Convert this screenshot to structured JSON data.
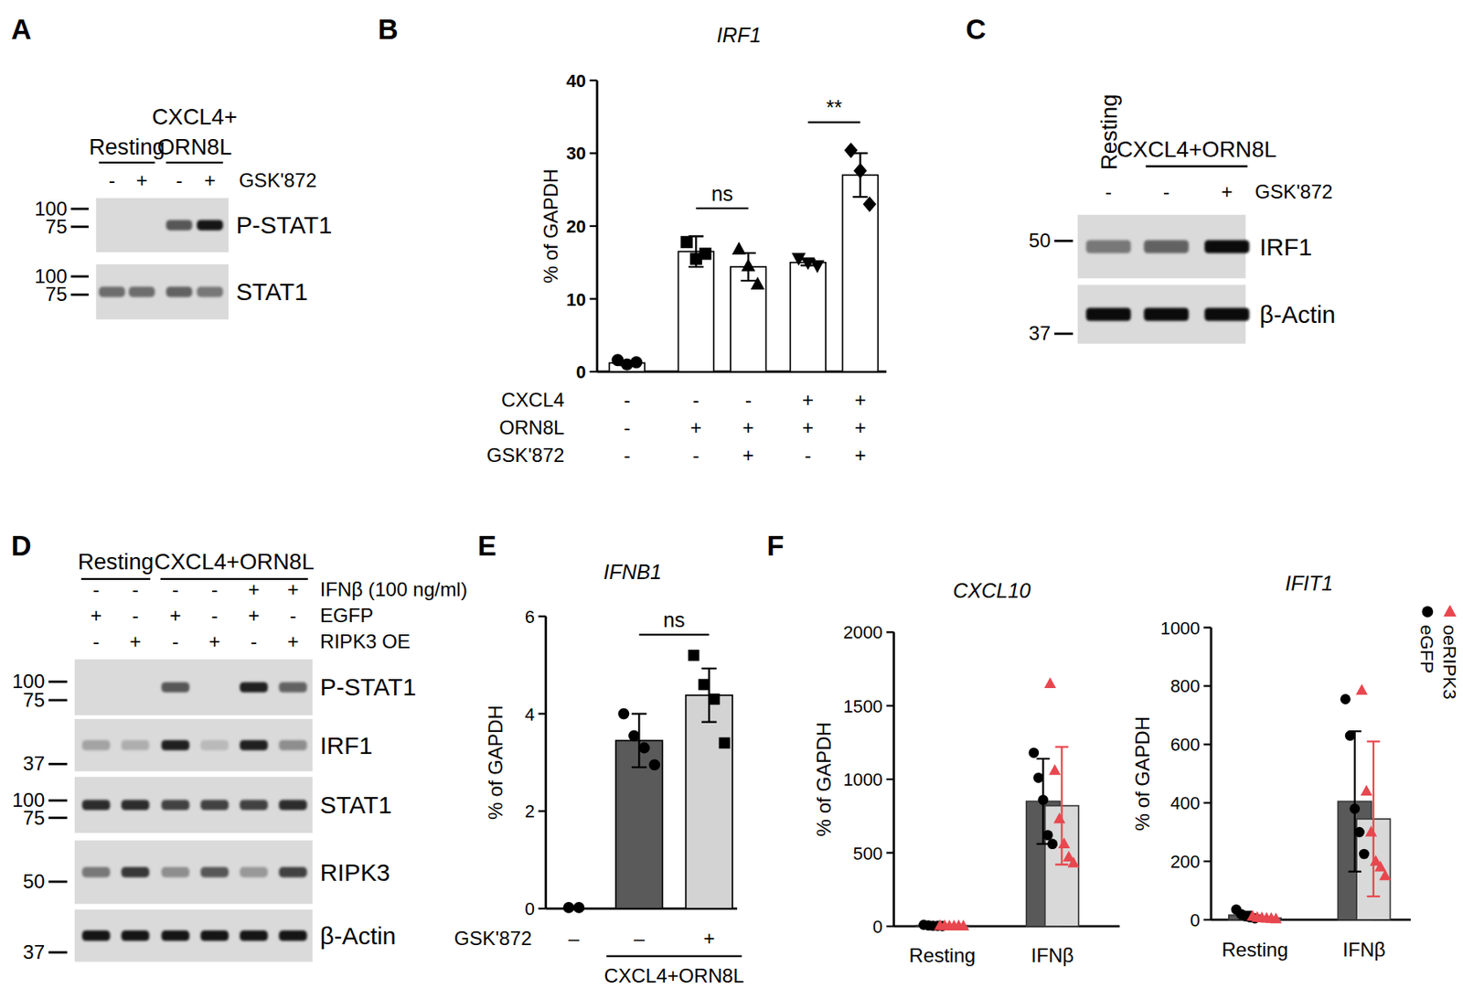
{
  "chart_data": [
    {
      "type": "bar",
      "panel": "B",
      "title": "IRF1",
      "y_label": "% of GAPDH",
      "categories": [
        null,
        null,
        null,
        null,
        null
      ],
      "values": [
        1.2,
        16.5,
        14.4,
        15.0,
        27.0
      ],
      "errors": [
        0.3,
        2.1,
        1.9,
        0.4,
        3.0
      ],
      "points": [
        [
          1.6,
          1.0,
          1.3
        ],
        [
          17.8,
          15.5,
          16.2
        ],
        [
          16.8,
          14.5,
          12.0
        ],
        [
          15.6,
          15.0,
          14.6
        ],
        [
          30.4,
          27.6,
          23.0
        ]
      ],
      "marker": [
        "circle",
        "square",
        "triangle",
        "triangle-down",
        "diamond"
      ],
      "color": "#ffffff",
      "ylim": [
        0,
        40
      ],
      "yticks": [
        0,
        10,
        20,
        30,
        40
      ],
      "conditions": [
        {
          "name": "CXCL4",
          "signs": [
            "-",
            "-",
            "-",
            "+",
            "+"
          ]
        },
        {
          "name": "ORN8L",
          "signs": [
            "-",
            "+",
            "+",
            "+",
            "+"
          ]
        },
        {
          "name": "GSK'872",
          "signs": [
            "-",
            "-",
            "+",
            "-",
            "+"
          ]
        }
      ],
      "significance": [
        {
          "pair": [
            1,
            2
          ],
          "text": "ns"
        },
        {
          "pair": [
            3,
            4
          ],
          "text": "**"
        }
      ]
    },
    {
      "type": "bar",
      "panel": "E",
      "title": "IFNB1",
      "y_label": "% of GAPDH",
      "categories": [
        null,
        null,
        null
      ],
      "values": [
        0,
        3.45,
        4.38
      ],
      "errors": [
        0,
        0.55,
        0.55
      ],
      "points": [
        [
          0.02,
          0.02
        ],
        [
          4.0,
          3.55,
          3.3,
          2.95
        ],
        [
          5.2,
          4.6,
          4.3,
          3.4
        ]
      ],
      "marker": [
        "circle",
        "circle",
        "square"
      ],
      "colors": [
        "#5a5a5a",
        "#5a5a5a",
        "#d3d3d3"
      ],
      "ylim": [
        0,
        6
      ],
      "yticks": [
        0,
        2,
        4,
        6
      ],
      "conditions": [
        {
          "name": "GSK'872",
          "signs": [
            "–",
            "–",
            "+"
          ]
        }
      ],
      "group_labels": [
        {
          "text": "CXCL4+ORN8L",
          "span": [
            1,
            2
          ]
        }
      ],
      "significance": [
        {
          "pair": [
            1,
            2
          ],
          "text": "ns"
        }
      ]
    },
    {
      "type": "bar",
      "panel": "F",
      "title": "CXCL10",
      "y_label": "% of GAPDH",
      "categories": [
        "Resting",
        "IFNβ"
      ],
      "colors": [
        "#595959",
        "#d9d9d9"
      ],
      "series": [
        {
          "name": "eGFP",
          "color": "#000000",
          "marker": "circle",
          "values": [
            5,
            850
          ],
          "errors": [
            5,
            290
          ],
          "points": [
            [
              10,
              6,
              4,
              3,
              2
            ],
            [
              1180,
              1010,
              860,
              620,
              560
            ]
          ]
        },
        {
          "name": "oeRIPK3",
          "color": "#e8474f",
          "marker": "triangle",
          "values": [
            3,
            820
          ],
          "errors": [
            2,
            400
          ],
          "points": [
            [
              4,
              3,
              2,
              2,
              3,
              2
            ],
            [
              1650,
              1060,
              730,
              560,
              470,
              430
            ]
          ]
        }
      ],
      "ylim": [
        0,
        2000
      ],
      "yticks": [
        0,
        500,
        1000,
        1500,
        2000
      ]
    },
    {
      "type": "bar",
      "title": "IFIT1",
      "y_label": "% of GAPDH",
      "categories": [
        "Resting",
        "IFNβ"
      ],
      "colors": [
        "#595959",
        "#d9d9d9"
      ],
      "series": [
        {
          "name": "eGFP",
          "color": "#000000",
          "marker": "circle",
          "values": [
            16,
            405
          ],
          "errors": [
            12,
            240
          ],
          "points": [
            [
              35,
              20,
              12,
              8,
              5
            ],
            [
              755,
              630,
              380,
              300,
              225
            ]
          ]
        },
        {
          "name": "oeRIPK3",
          "color": "#e8474f",
          "marker": "triangle",
          "values": [
            6,
            345
          ],
          "errors": [
            4,
            265
          ],
          "points": [
            [
              12,
              8,
              6,
              5,
              4,
              3
            ],
            [
              785,
              440,
              300,
              200,
              180,
              150
            ]
          ]
        }
      ],
      "ylim": [
        0,
        1000
      ],
      "yticks": [
        0,
        200,
        400,
        600,
        800,
        1000
      ],
      "legend": "right"
    }
  ],
  "blots": [
    {
      "panel": "A",
      "headers": [
        {
          "text": [
            "Resting"
          ],
          "span": [
            0,
            1
          ]
        },
        {
          "text": [
            "CXCL4+",
            "ORN8L"
          ],
          "span": [
            2,
            3
          ]
        }
      ],
      "conditions": [
        {
          "name": "GSK'872",
          "signs": [
            "-",
            "+",
            "-",
            "+"
          ]
        }
      ],
      "rows": [
        {
          "name": "P-STAT1",
          "markers": [
            100,
            75
          ],
          "intensity": [
            0,
            0,
            0.6,
            0.9
          ]
        },
        {
          "name": "STAT1",
          "markers": [
            100,
            75
          ],
          "intensity": [
            0.5,
            0.5,
            0.55,
            0.45
          ]
        }
      ]
    },
    {
      "panel": "C",
      "headers": [
        {
          "text": [
            "Resting"
          ],
          "span": [
            0,
            0
          ]
        },
        {
          "text": [
            "CXCL4+ORN8L"
          ],
          "span": [
            1,
            2
          ]
        }
      ],
      "conditions": [
        {
          "name": "GSK'872",
          "signs": [
            "-",
            "-",
            "+"
          ]
        }
      ],
      "rows": [
        {
          "name": "IRF1",
          "markers": [
            50
          ],
          "intensity": [
            0.45,
            0.55,
            0.95
          ]
        },
        {
          "name": "β-Actin",
          "markers": [
            37
          ],
          "intensity": [
            0.95,
            0.95,
            0.95
          ]
        }
      ]
    },
    {
      "panel": "D",
      "headers": [
        {
          "text": [
            "Resting"
          ],
          "span": [
            0,
            1
          ]
        },
        {
          "text": [
            "CXCL4+ORN8L"
          ],
          "span": [
            2,
            5
          ]
        }
      ],
      "conditions": [
        {
          "name": "IFNβ (100 ng/ml)",
          "signs": [
            "-",
            "-",
            "-",
            "-",
            "+",
            "+"
          ]
        },
        {
          "name": "EGFP",
          "signs": [
            "+",
            "-",
            "+",
            "-",
            "+",
            "-"
          ]
        },
        {
          "name": "RIPK3 OE",
          "signs": [
            "-",
            "+",
            "-",
            "+",
            "-",
            "+"
          ]
        }
      ],
      "rows": [
        {
          "name": "P-STAT1",
          "markers": [
            100,
            75
          ],
          "intensity": [
            0,
            0,
            0.6,
            0,
            0.85,
            0.55
          ]
        },
        {
          "name": "IRF1",
          "markers": [
            37
          ],
          "intensity": [
            0.25,
            0.2,
            0.85,
            0.15,
            0.85,
            0.35
          ]
        },
        {
          "name": "STAT1",
          "markers": [
            100,
            75
          ],
          "intensity": [
            0.8,
            0.8,
            0.7,
            0.7,
            0.7,
            0.8
          ]
        },
        {
          "name": "RIPK3",
          "markers": [
            50
          ],
          "intensity": [
            0.45,
            0.75,
            0.35,
            0.6,
            0.3,
            0.7
          ]
        },
        {
          "name": "β-Actin",
          "markers": [
            37
          ],
          "intensity": [
            0.9,
            0.9,
            0.9,
            0.9,
            0.9,
            0.9
          ]
        }
      ]
    }
  ]
}
